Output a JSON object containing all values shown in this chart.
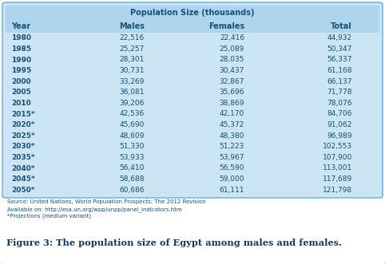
{
  "title": "Population Size (thousands)",
  "columns": [
    "Year",
    "Males",
    "Females",
    "Total"
  ],
  "rows": [
    [
      "1980",
      "22,516",
      "22,416",
      "44,932"
    ],
    [
      "1985",
      "25,257",
      "25,089",
      "50,347"
    ],
    [
      "1990",
      "28,301",
      "28,035",
      "56,337"
    ],
    [
      "1995",
      "30,731",
      "30,437",
      "61,168"
    ],
    [
      "2000",
      "33,269",
      "32,867",
      "66,137"
    ],
    [
      "2005",
      "36,081",
      "35,696",
      "71,778"
    ],
    [
      "2010",
      "39,206",
      "38,869",
      "78,076"
    ],
    [
      "2015*",
      "42,536",
      "42,170",
      "84,706"
    ],
    [
      "2020*",
      "45,690",
      "45,372",
      "91,062"
    ],
    [
      "2025*",
      "48,609",
      "48,380",
      "96,989"
    ],
    [
      "2030*",
      "51,330",
      "51,223",
      "102,553"
    ],
    [
      "2035*",
      "53,933",
      "53,967",
      "107,900"
    ],
    [
      "2040*",
      "56,410",
      "56,590",
      "113,001"
    ],
    [
      "2045*",
      "58,688",
      "59,000",
      "117,689"
    ],
    [
      "2050*",
      "60,686",
      "61,111",
      "121,798"
    ]
  ],
  "source_lines": [
    "Source: United Nations, World Population Prospects: The 2012 Revision",
    "Available on: http://esa.un.org/wpp/unpp/panel_indicators.htm",
    "*Projections (medium variant)"
  ],
  "figure_caption": "Figure 3: The population size of Egypt among males and females.",
  "table_bg": "#cce5f5",
  "header_bg": "#aed4ee",
  "border_color": "#7ab8d9",
  "header_text_color": "#1a5276",
  "year_text_color": "#1a4f72",
  "data_text_color": "#1a4f72",
  "source_text_color": "#1a5276",
  "caption_color": "#1a3a5c",
  "outer_bg": "#ffffff"
}
